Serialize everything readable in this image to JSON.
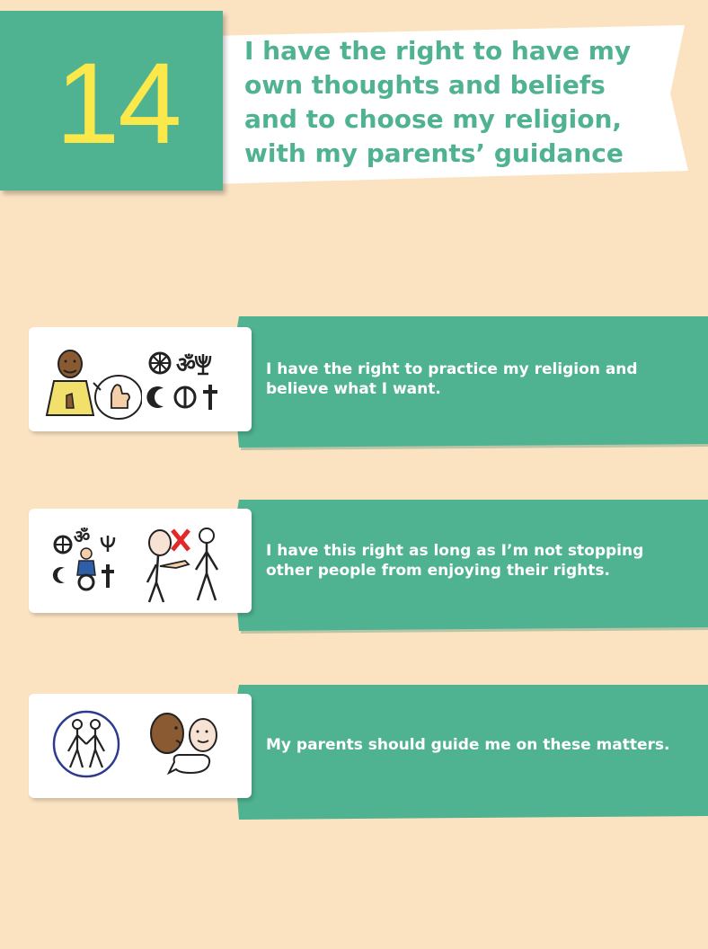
{
  "header": {
    "number": "14",
    "title": "I have the right to have my own thoughts and beliefs and to choose my religion, with my parents’ guidance"
  },
  "rows": [
    {
      "text": "I have the right to practice my religion and believe what I want.",
      "icons": [
        "person-thumbs-up-icon",
        "religious-symbols-icon"
      ]
    },
    {
      "text": "I have this right as long as I’m not stopping other people from enjoying their rights.",
      "icons": [
        "religious-symbols-person-icon",
        "stop-pointing-icon"
      ]
    },
    {
      "text": "My parents should guide me on these matters.",
      "icons": [
        "parents-circle-icon",
        "parent-talking-icon"
      ]
    }
  ],
  "colors": {
    "background": "#fbe3c2",
    "accent": "#4fb291",
    "number": "#fbe84a",
    "card": "#ffffff"
  }
}
